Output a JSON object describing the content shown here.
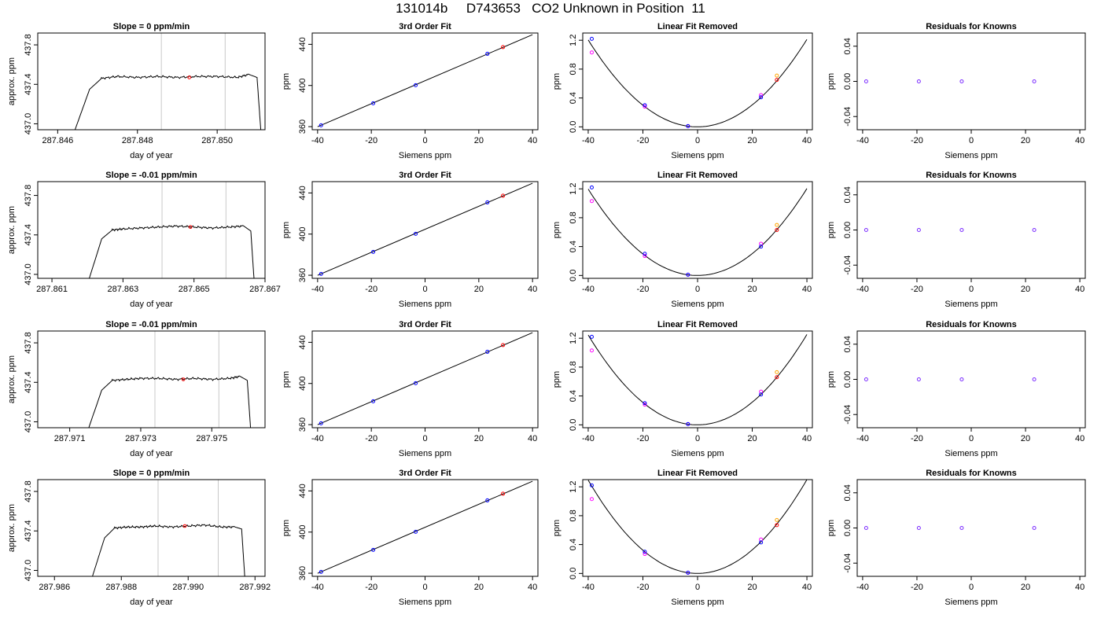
{
  "main_title": "131014b     D743653   CO2 Unknown in Position  11",
  "colors": {
    "known": "#0000ff",
    "unknown": "#ff0000",
    "fit_magenta": "#ff00ff",
    "fit_orange": "#ffa500",
    "residual": "#7b2cff",
    "guide": "#c8c8c8",
    "line": "#000000"
  },
  "chart_data": [
    {
      "type": "line",
      "row": 1,
      "col": 1,
      "title": "Slope =  0  ppm/min",
      "xlabel": "day of year",
      "ylabel": "approx. ppm",
      "xlim": [
        287.8455,
        287.8512
      ],
      "ylim": [
        436.94,
        437.92
      ],
      "x_ticks": [
        "287.846",
        "287.848",
        "287.850"
      ],
      "x_tick_values": [
        287.846,
        287.848,
        287.85
      ],
      "y_ticks": [
        "437.0",
        "437.4",
        "437.8"
      ],
      "y_tick_values": [
        437.0,
        437.4,
        437.8
      ],
      "guide_x": [
        287.8486,
        287.8502
      ],
      "series": [
        {
          "x": [
            287.8464,
            287.8468,
            287.8471,
            287.8475,
            287.848,
            287.8485,
            287.849,
            287.8495,
            287.85,
            287.8505,
            287.8508,
            287.851,
            287.8511
          ],
          "y": [
            436.9,
            437.35,
            437.46,
            437.48,
            437.47,
            437.48,
            437.47,
            437.48,
            437.48,
            437.47,
            437.5,
            437.47,
            436.9
          ]
        }
      ],
      "marker": {
        "x": 287.8493,
        "y": 437.47
      }
    },
    {
      "type": "line",
      "row": 2,
      "col": 1,
      "title": "Slope =  -0.01  ppm/min",
      "xlabel": "day of year",
      "ylabel": "approx. ppm",
      "xlim": [
        287.8606,
        287.867
      ],
      "ylim": [
        436.96,
        437.94
      ],
      "x_ticks": [
        "287.861",
        "287.863",
        "287.865",
        "287.867"
      ],
      "x_tick_values": [
        287.861,
        287.863,
        287.865,
        287.867
      ],
      "y_ticks": [
        "437.0",
        "437.4",
        "437.8"
      ],
      "y_tick_values": [
        437.0,
        437.4,
        437.8
      ],
      "guide_x": [
        287.8641,
        287.8659
      ],
      "series": [
        {
          "x": [
            287.862,
            287.8624,
            287.8627,
            287.863,
            287.8635,
            287.864,
            287.8645,
            287.865,
            287.8655,
            287.866,
            287.8664,
            287.8666,
            287.8667
          ],
          "y": [
            436.9,
            437.36,
            437.45,
            437.46,
            437.47,
            437.48,
            437.49,
            437.48,
            437.47,
            437.48,
            437.49,
            437.44,
            436.9
          ]
        }
      ],
      "marker": {
        "x": 287.8649,
        "y": 437.48
      }
    },
    {
      "type": "line",
      "row": 3,
      "col": 1,
      "title": "Slope =  -0.01  ppm/min",
      "xlabel": "day of year",
      "ylabel": "approx. ppm",
      "xlim": [
        287.9701,
        287.9765
      ],
      "ylim": [
        436.94,
        437.92
      ],
      "x_ticks": [
        "287.971",
        "287.973",
        "287.975"
      ],
      "x_tick_values": [
        287.971,
        287.973,
        287.975
      ],
      "y_ticks": [
        "437.0",
        "437.4",
        "437.8"
      ],
      "y_tick_values": [
        437.0,
        437.4,
        437.8
      ],
      "guide_x": [
        287.9734,
        287.9752
      ],
      "series": [
        {
          "x": [
            287.9715,
            287.9719,
            287.9722,
            287.9726,
            287.973,
            287.9735,
            287.974,
            287.9745,
            287.975,
            287.9755,
            287.9758,
            287.976,
            287.9761
          ],
          "y": [
            436.9,
            437.32,
            437.42,
            437.43,
            437.44,
            437.44,
            437.43,
            437.44,
            437.43,
            437.44,
            437.46,
            437.42,
            436.9
          ]
        }
      ],
      "marker": {
        "x": 287.9742,
        "y": 437.43
      }
    },
    {
      "type": "line",
      "row": 4,
      "col": 1,
      "title": "Slope =  0  ppm/min",
      "xlabel": "day of year",
      "ylabel": "approx. ppm",
      "xlim": [
        287.9855,
        287.9923
      ],
      "ylim": [
        436.94,
        437.92
      ],
      "x_ticks": [
        "287.986",
        "287.988",
        "287.990",
        "287.992"
      ],
      "x_tick_values": [
        287.986,
        287.988,
        287.99,
        287.992
      ],
      "y_ticks": [
        "437.0",
        "437.4",
        "437.8"
      ],
      "y_tick_values": [
        437.0,
        437.4,
        437.8
      ],
      "guide_x": [
        287.9891,
        287.9909
      ],
      "series": [
        {
          "x": [
            287.9871,
            287.9875,
            287.9878,
            287.9882,
            287.9886,
            287.989,
            287.9895,
            287.99,
            287.9905,
            287.991,
            287.9914,
            287.9916,
            287.9917
          ],
          "y": [
            436.9,
            437.33,
            437.43,
            437.44,
            437.44,
            437.45,
            437.44,
            437.45,
            437.46,
            437.44,
            437.44,
            437.42,
            436.9
          ]
        }
      ],
      "marker": {
        "x": 287.9899,
        "y": 437.45
      }
    },
    {
      "type": "scatter",
      "row": 1,
      "col": 2,
      "title": "3rd Order Fit",
      "xlabel": "Siemens ppm",
      "ylabel": "ppm",
      "xlim": [
        -42,
        42
      ],
      "ylim": [
        357,
        451
      ],
      "x_ticks": [
        "-40",
        "-20",
        "0",
        "20",
        "40"
      ],
      "x_tick_values": [
        -40,
        -20,
        0,
        20,
        40
      ],
      "y_ticks": [
        "360",
        "400",
        "440"
      ],
      "y_tick_values": [
        360,
        400,
        440
      ],
      "fit_line": {
        "x": [
          -40,
          40
        ],
        "y": [
          359.9,
          449.4
        ]
      },
      "knowns": {
        "x": [
          -38.7,
          -19.3,
          -3.5,
          23.2
        ],
        "y": [
          361.3,
          382.7,
          400.3,
          430.8
        ]
      },
      "unknown": {
        "x": 29,
        "y": 437.3
      }
    },
    {
      "type": "scatter",
      "row": 2,
      "col": 2,
      "title": "3rd Order Fit",
      "xlabel": "Siemens ppm",
      "ylabel": "ppm",
      "xlim": [
        -42,
        42
      ],
      "ylim": [
        357,
        451
      ],
      "x_ticks": [
        "-40",
        "-20",
        "0",
        "20",
        "40"
      ],
      "x_tick_values": [
        -40,
        -20,
        0,
        20,
        40
      ],
      "y_ticks": [
        "360",
        "400",
        "440"
      ],
      "y_tick_values": [
        360,
        400,
        440
      ],
      "fit_line": {
        "x": [
          -40,
          40
        ],
        "y": [
          359.9,
          449.4
        ]
      },
      "knowns": {
        "x": [
          -38.7,
          -19.3,
          -3.5,
          23.2
        ],
        "y": [
          361.3,
          382.7,
          400.3,
          430.8
        ]
      },
      "unknown": {
        "x": 29,
        "y": 437.3
      }
    },
    {
      "type": "scatter",
      "row": 3,
      "col": 2,
      "title": "3rd Order Fit",
      "xlabel": "Siemens ppm",
      "ylabel": "ppm",
      "xlim": [
        -42,
        42
      ],
      "ylim": [
        357,
        451
      ],
      "x_ticks": [
        "-40",
        "-20",
        "0",
        "20",
        "40"
      ],
      "x_tick_values": [
        -40,
        -20,
        0,
        20,
        40
      ],
      "y_ticks": [
        "360",
        "400",
        "440"
      ],
      "y_tick_values": [
        360,
        400,
        440
      ],
      "fit_line": {
        "x": [
          -40,
          40
        ],
        "y": [
          359.9,
          449.4
        ]
      },
      "knowns": {
        "x": [
          -38.7,
          -19.3,
          -3.5,
          23.2
        ],
        "y": [
          361.3,
          382.7,
          400.3,
          430.8
        ]
      },
      "unknown": {
        "x": 29,
        "y": 437.3
      }
    },
    {
      "type": "scatter",
      "row": 4,
      "col": 2,
      "title": "3rd Order Fit",
      "xlabel": "Siemens ppm",
      "ylabel": "ppm",
      "xlim": [
        -42,
        42
      ],
      "ylim": [
        357,
        451
      ],
      "x_ticks": [
        "-40",
        "-20",
        "0",
        "20",
        "40"
      ],
      "x_tick_values": [
        -40,
        -20,
        0,
        20,
        40
      ],
      "y_ticks": [
        "360",
        "400",
        "440"
      ],
      "y_tick_values": [
        360,
        400,
        440
      ],
      "fit_line": {
        "x": [
          -40,
          40
        ],
        "y": [
          359.9,
          449.4
        ]
      },
      "knowns": {
        "x": [
          -38.7,
          -19.3,
          -3.5,
          23.2
        ],
        "y": [
          361.3,
          382.7,
          400.3,
          430.8
        ]
      },
      "unknown": {
        "x": 29,
        "y": 437.3
      }
    },
    {
      "type": "scatter",
      "row": 1,
      "col": 3,
      "title": "Linear Fit Removed",
      "xlabel": "Siemens ppm",
      "ylabel": "ppm",
      "xlim": [
        -42,
        42
      ],
      "ylim": [
        -0.04,
        1.3
      ],
      "x_ticks": [
        "-40",
        "-20",
        "0",
        "20",
        "40"
      ],
      "x_tick_values": [
        -40,
        -20,
        0,
        20,
        40
      ],
      "y_ticks": [
        "0.0",
        "0.4",
        "0.8",
        "1.2"
      ],
      "y_tick_values": [
        0.0,
        0.4,
        0.8,
        1.2
      ],
      "curve": {
        "a": 0.000755,
        "b": 0.0001,
        "c": 0.0
      },
      "knowns": {
        "x": [
          -38.7,
          -19.3,
          -3.5,
          23.2
        ],
        "y": [
          1.22,
          0.3,
          0.01,
          0.41
        ]
      },
      "magenta": {
        "x": [
          -38.7,
          -19.3,
          -3.5,
          23.2
        ],
        "y": [
          1.03,
          0.28,
          0.01,
          0.44
        ]
      },
      "orange": {
        "x": [
          29
        ],
        "y": [
          0.71
        ]
      },
      "unknown": {
        "x": 29,
        "y": 0.65
      }
    },
    {
      "type": "scatter",
      "row": 2,
      "col": 3,
      "title": "Linear Fit Removed",
      "xlabel": "Siemens ppm",
      "ylabel": "ppm",
      "xlim": [
        -42,
        42
      ],
      "ylim": [
        -0.04,
        1.3
      ],
      "x_ticks": [
        "-40",
        "-20",
        "0",
        "20",
        "40"
      ],
      "x_tick_values": [
        -40,
        -20,
        0,
        20,
        40
      ],
      "y_ticks": [
        "0.0",
        "0.4",
        "0.8",
        "1.2"
      ],
      "y_tick_values": [
        0.0,
        0.4,
        0.8,
        1.2
      ],
      "curve": {
        "a": 0.00075,
        "b": 0.0001,
        "c": 0.0
      },
      "knowns": {
        "x": [
          -38.7,
          -19.3,
          -3.5,
          23.2
        ],
        "y": [
          1.22,
          0.3,
          0.01,
          0.4
        ]
      },
      "magenta": {
        "x": [
          -38.7,
          -19.3,
          -3.5,
          23.2
        ],
        "y": [
          1.03,
          0.27,
          0.01,
          0.44
        ]
      },
      "orange": {
        "x": [
          29
        ],
        "y": [
          0.7
        ]
      },
      "unknown": {
        "x": 29,
        "y": 0.63
      }
    },
    {
      "type": "scatter",
      "row": 3,
      "col": 3,
      "title": "Linear Fit Removed",
      "xlabel": "Siemens ppm",
      "ylabel": "ppm",
      "xlim": [
        -42,
        42
      ],
      "ylim": [
        -0.04,
        1.3
      ],
      "x_ticks": [
        "-40",
        "-20",
        "0",
        "20",
        "40"
      ],
      "x_tick_values": [
        -40,
        -20,
        0,
        20,
        40
      ],
      "y_ticks": [
        "0.0",
        "0.4",
        "0.8",
        "1.2"
      ],
      "y_tick_values": [
        0.0,
        0.4,
        0.8,
        1.2
      ],
      "curve": {
        "a": 0.00078,
        "b": 0.0001,
        "c": 0.0
      },
      "knowns": {
        "x": [
          -38.7,
          -19.3,
          -3.5,
          23.2
        ],
        "y": [
          1.22,
          0.3,
          0.01,
          0.42
        ]
      },
      "magenta": {
        "x": [
          -38.7,
          -19.3,
          -3.5,
          23.2
        ],
        "y": [
          1.03,
          0.28,
          0.01,
          0.46
        ]
      },
      "orange": {
        "x": [
          29
        ],
        "y": [
          0.73
        ]
      },
      "unknown": {
        "x": 29,
        "y": 0.66
      }
    },
    {
      "type": "scatter",
      "row": 4,
      "col": 3,
      "title": "Linear Fit Removed",
      "xlabel": "Siemens ppm",
      "ylabel": "ppm",
      "xlim": [
        -42,
        42
      ],
      "ylim": [
        -0.04,
        1.3
      ],
      "x_ticks": [
        "-40",
        "-20",
        "0",
        "20",
        "40"
      ],
      "x_tick_values": [
        -40,
        -20,
        0,
        20,
        40
      ],
      "y_ticks": [
        "0.0",
        "0.4",
        "0.8",
        "1.2"
      ],
      "y_tick_values": [
        0.0,
        0.4,
        0.8,
        1.2
      ],
      "curve": {
        "a": 0.00081,
        "b": 0.0001,
        "c": 0.0
      },
      "knowns": {
        "x": [
          -38.7,
          -19.3,
          -3.5,
          23.2
        ],
        "y": [
          1.22,
          0.3,
          0.01,
          0.43
        ]
      },
      "magenta": {
        "x": [
          -38.7,
          -19.3,
          -3.5,
          23.2
        ],
        "y": [
          1.03,
          0.27,
          0.01,
          0.47
        ]
      },
      "orange": {
        "x": [
          29
        ],
        "y": [
          0.74
        ]
      },
      "unknown": {
        "x": 29,
        "y": 0.67
      }
    },
    {
      "type": "scatter",
      "row": 1,
      "col": 4,
      "title": "Residuals for Knowns",
      "xlabel": "Siemens ppm",
      "ylabel": "ppm",
      "xlim": [
        -42,
        42
      ],
      "ylim": [
        -0.055,
        0.055
      ],
      "x_ticks": [
        "-40",
        "-20",
        "0",
        "20",
        "40"
      ],
      "x_tick_values": [
        -40,
        -20,
        0,
        20,
        40
      ],
      "y_ticks": [
        "-0.04",
        "0.00",
        "0.04"
      ],
      "y_tick_values": [
        -0.04,
        0.0,
        0.04
      ],
      "residuals": {
        "x": [
          -38.7,
          -19.3,
          -3.5,
          23.2
        ],
        "y": [
          0,
          0,
          0,
          0
        ]
      }
    },
    {
      "type": "scatter",
      "row": 2,
      "col": 4,
      "title": "Residuals for Knowns",
      "xlabel": "Siemens ppm",
      "ylabel": "ppm",
      "xlim": [
        -42,
        42
      ],
      "ylim": [
        -0.055,
        0.055
      ],
      "x_ticks": [
        "-40",
        "-20",
        "0",
        "20",
        "40"
      ],
      "x_tick_values": [
        -40,
        -20,
        0,
        20,
        40
      ],
      "y_ticks": [
        "-0.04",
        "0.00",
        "0.04"
      ],
      "y_tick_values": [
        -0.04,
        0.0,
        0.04
      ],
      "residuals": {
        "x": [
          -38.7,
          -19.3,
          -3.5,
          23.2
        ],
        "y": [
          0,
          0,
          0,
          0
        ]
      }
    },
    {
      "type": "scatter",
      "row": 3,
      "col": 4,
      "title": "Residuals for Knowns",
      "xlabel": "Siemens ppm",
      "ylabel": "ppm",
      "xlim": [
        -42,
        42
      ],
      "ylim": [
        -0.055,
        0.055
      ],
      "x_ticks": [
        "-40",
        "-20",
        "0",
        "20",
        "40"
      ],
      "x_tick_values": [
        -40,
        -20,
        0,
        20,
        40
      ],
      "y_ticks": [
        "-0.04",
        "0.00",
        "0.04"
      ],
      "y_tick_values": [
        -0.04,
        0.0,
        0.04
      ],
      "residuals": {
        "x": [
          -38.7,
          -19.3,
          -3.5,
          23.2
        ],
        "y": [
          0,
          0,
          0,
          0
        ]
      }
    },
    {
      "type": "scatter",
      "row": 4,
      "col": 4,
      "title": "Residuals for Knowns",
      "xlabel": "Siemens ppm",
      "ylabel": "ppm",
      "xlim": [
        -42,
        42
      ],
      "ylim": [
        -0.055,
        0.055
      ],
      "x_ticks": [
        "-40",
        "-20",
        "0",
        "20",
        "40"
      ],
      "x_tick_values": [
        -40,
        -20,
        0,
        20,
        40
      ],
      "y_ticks": [
        "-0.04",
        "0.00",
        "0.04"
      ],
      "y_tick_values": [
        -0.04,
        0.0,
        0.04
      ],
      "residuals": {
        "x": [
          -38.7,
          -19.3,
          -3.5,
          23.2
        ],
        "y": [
          0,
          0,
          0,
          0
        ]
      }
    }
  ]
}
